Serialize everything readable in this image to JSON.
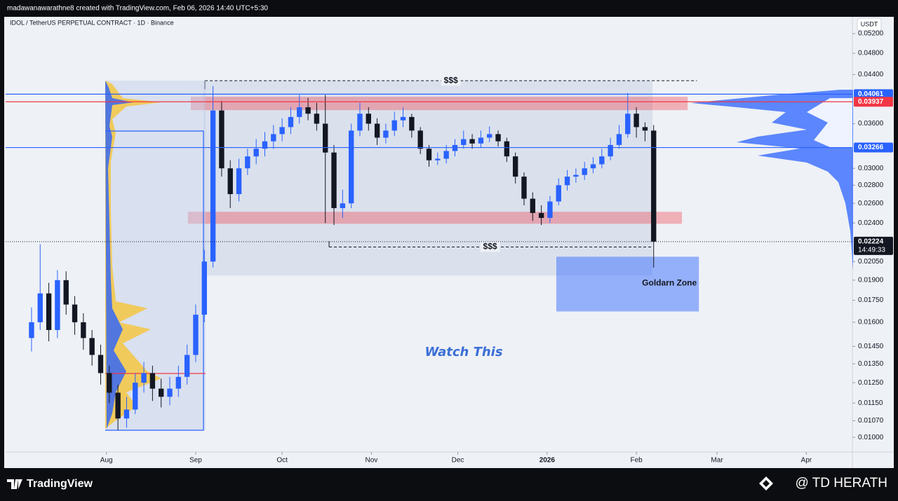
{
  "header": {
    "author_line": "madawanawarathne8 created with TradingView.com, Feb 06, 2026 14:40 UTC+5:30"
  },
  "chart_data": {
    "type": "candlestick",
    "symbol": "IDOL / TetherUS PERPETUAL CONTRACT · 1D · Binance",
    "currency": "USDT",
    "log_scale": true,
    "grid": false,
    "up_color": "#2962ff",
    "down_color": "#131722",
    "xlim": [
      -4,
      290
    ],
    "xticks": [
      {
        "value": 31,
        "label": "Aug"
      },
      {
        "value": 62,
        "label": "Sep"
      },
      {
        "value": 92,
        "label": "Oct"
      },
      {
        "value": 123,
        "label": "Nov"
      },
      {
        "value": 153,
        "label": "Dec"
      },
      {
        "value": 184,
        "label": "2026"
      },
      {
        "value": 215,
        "label": "Feb"
      },
      {
        "value": 243,
        "label": "Mar"
      },
      {
        "value": 274,
        "label": "Apr"
      }
    ],
    "ylim": [
      0.00942,
      0.0557
    ],
    "yticks": [
      {
        "value": 0.052,
        "label": "0.05200"
      },
      {
        "value": 0.048,
        "label": "0.04800"
      },
      {
        "value": 0.044,
        "label": "0.04400"
      },
      {
        "value": 0.036,
        "label": "0.03600"
      },
      {
        "value": 0.03,
        "label": "0.03000"
      },
      {
        "value": 0.028,
        "label": "0.02800"
      },
      {
        "value": 0.026,
        "label": "0.02600"
      },
      {
        "value": 0.024,
        "label": "0.02400"
      },
      {
        "value": 0.0205,
        "label": "0.02050"
      },
      {
        "value": 0.019,
        "label": "0.01900"
      },
      {
        "value": 0.0175,
        "label": "0.01750"
      },
      {
        "value": 0.016,
        "label": "0.01600"
      },
      {
        "value": 0.0145,
        "label": "0.01450"
      },
      {
        "value": 0.0135,
        "label": "0.01350"
      },
      {
        "value": 0.0125,
        "label": "0.01250"
      },
      {
        "value": 0.0115,
        "label": "0.01150"
      },
      {
        "value": 0.0107,
        "label": "0.01070"
      },
      {
        "value": 0.01,
        "label": "0.01000"
      }
    ],
    "series": [
      {
        "x": [
          5,
          8,
          11,
          14,
          17,
          20,
          23,
          26,
          29,
          32,
          35,
          38,
          41,
          44,
          47,
          50,
          53,
          56,
          59,
          62,
          65,
          68,
          71,
          74,
          77,
          80,
          83,
          86,
          89,
          92,
          95,
          98,
          101,
          104,
          107,
          110,
          113,
          116,
          119,
          122,
          125,
          128,
          131,
          134,
          137,
          140,
          143,
          146,
          149,
          152,
          155,
          158,
          161,
          164,
          167,
          170,
          173,
          176,
          179,
          182,
          185,
          188,
          191,
          194,
          197,
          200,
          203,
          206,
          209,
          212,
          215,
          218,
          221
        ],
        "open": [
          0.015,
          0.016,
          0.018,
          0.0155,
          0.019,
          0.0172,
          0.016,
          0.015,
          0.014,
          0.013,
          0.012,
          0.0108,
          0.0112,
          0.0125,
          0.013,
          0.0122,
          0.0118,
          0.0122,
          0.0128,
          0.014,
          0.0165,
          0.0205,
          0.038,
          0.03,
          0.027,
          0.03,
          0.0315,
          0.0325,
          0.0335,
          0.0345,
          0.0355,
          0.037,
          0.0385,
          0.0375,
          0.036,
          0.032,
          0.0255,
          0.026,
          0.035,
          0.0375,
          0.036,
          0.034,
          0.035,
          0.0365,
          0.037,
          0.035,
          0.0325,
          0.031,
          0.0312,
          0.0322,
          0.033,
          0.0338,
          0.0332,
          0.034,
          0.0345,
          0.0335,
          0.0315,
          0.029,
          0.0265,
          0.025,
          0.0245,
          0.0262,
          0.028,
          0.029,
          0.0292,
          0.03,
          0.0305,
          0.0315,
          0.033,
          0.0345,
          0.0375,
          0.0355,
          0.035
        ],
        "high": [
          0.017,
          0.022,
          0.0188,
          0.0198,
          0.0197,
          0.0178,
          0.0166,
          0.0155,
          0.0146,
          0.0134,
          0.0124,
          0.0118,
          0.013,
          0.0136,
          0.0134,
          0.0127,
          0.0128,
          0.0134,
          0.0146,
          0.0172,
          0.0215,
          0.042,
          0.0395,
          0.031,
          0.0312,
          0.0325,
          0.0338,
          0.0348,
          0.0358,
          0.0368,
          0.0385,
          0.0405,
          0.04,
          0.0392,
          0.0405,
          0.033,
          0.0275,
          0.036,
          0.0392,
          0.0385,
          0.0368,
          0.036,
          0.0378,
          0.0385,
          0.0375,
          0.0355,
          0.033,
          0.032,
          0.033,
          0.0338,
          0.035,
          0.0345,
          0.035,
          0.0356,
          0.035,
          0.034,
          0.032,
          0.0295,
          0.0272,
          0.0258,
          0.0268,
          0.0288,
          0.0298,
          0.03,
          0.0308,
          0.0314,
          0.0325,
          0.034,
          0.0358,
          0.0408,
          0.0385,
          0.0362,
          0.0358
        ],
        "low": [
          0.0142,
          0.0155,
          0.0148,
          0.015,
          0.0165,
          0.0152,
          0.0143,
          0.0134,
          0.0124,
          0.0115,
          0.0103,
          0.0104,
          0.011,
          0.012,
          0.0116,
          0.0113,
          0.0114,
          0.0118,
          0.0124,
          0.0136,
          0.016,
          0.02,
          0.029,
          0.0255,
          0.0262,
          0.0292,
          0.0305,
          0.0315,
          0.0325,
          0.0335,
          0.0345,
          0.036,
          0.0365,
          0.035,
          0.024,
          0.0238,
          0.0245,
          0.0255,
          0.0342,
          0.035,
          0.033,
          0.0332,
          0.0342,
          0.0355,
          0.034,
          0.0318,
          0.0302,
          0.0304,
          0.0306,
          0.0315,
          0.0325,
          0.0325,
          0.0326,
          0.0334,
          0.0328,
          0.0308,
          0.0282,
          0.0258,
          0.0242,
          0.0238,
          0.024,
          0.0258,
          0.0274,
          0.0283,
          0.0286,
          0.0294,
          0.03,
          0.031,
          0.0325,
          0.034,
          0.034,
          0.0335,
          0.02
        ],
        "close": [
          0.016,
          0.018,
          0.0155,
          0.019,
          0.0172,
          0.016,
          0.015,
          0.014,
          0.013,
          0.012,
          0.0108,
          0.0112,
          0.0125,
          0.013,
          0.0122,
          0.0118,
          0.0122,
          0.0128,
          0.014,
          0.0165,
          0.0205,
          0.038,
          0.03,
          0.027,
          0.03,
          0.0315,
          0.0325,
          0.0335,
          0.0345,
          0.0355,
          0.037,
          0.0385,
          0.0375,
          0.036,
          0.032,
          0.0255,
          0.026,
          0.035,
          0.0375,
          0.036,
          0.034,
          0.035,
          0.0365,
          0.037,
          0.035,
          0.0325,
          0.031,
          0.0312,
          0.0322,
          0.033,
          0.0338,
          0.0332,
          0.034,
          0.0345,
          0.0335,
          0.0315,
          0.029,
          0.0265,
          0.025,
          0.0245,
          0.0262,
          0.028,
          0.029,
          0.0292,
          0.03,
          0.0305,
          0.0315,
          0.033,
          0.0345,
          0.0375,
          0.0355,
          0.035,
          0.02224
        ]
      }
    ],
    "price_lines": [
      {
        "price": {
          "value": 0.04061,
          "label": "0.04061"
        },
        "color": "#2962ff"
      },
      {
        "price": {
          "value": 0.03937,
          "label": "0.03937"
        },
        "color": "#f23645"
      },
      {
        "price": {
          "value": 0.03266,
          "label": "0.03266"
        },
        "color": "#2962ff"
      }
    ],
    "last_price": {
      "value": 0.02224,
      "label": "0.02224"
    },
    "countdown": "14:49:33",
    "range_box": {
      "x": [
        64.7,
        220.6
      ],
      "y": [
        0.01936,
        0.04291
      ],
      "color": "rgba(180,196,222,0.35)"
    },
    "zones": [
      {
        "x": [
          60.3,
          232.8
        ],
        "y": [
          0.03805,
          0.04018
        ],
        "color": "rgba(242,54,69,0.35)"
      },
      {
        "x": [
          59.3,
          230.8
        ],
        "y": [
          0.02392,
          0.02512
        ],
        "color": "rgba(242,54,69,0.35)"
      },
      {
        "x": [
          187.2,
          236.7
        ],
        "y": [
          0.01672,
          0.02091
        ],
        "color": "rgba(41,98,255,0.45)",
        "label": "Goldarn Zone"
      }
    ],
    "levels": [
      {
        "label": "$$$",
        "x": [
          65.2,
          236
        ],
        "y": 0.04291
      },
      {
        "label": "$$$",
        "x": [
          108.3,
          220.1
        ],
        "y": 0.02176
      }
    ],
    "annotation": "Watch This"
  },
  "footer": {
    "brand": "TradingView",
    "watermark": "@ TD HERATH"
  }
}
